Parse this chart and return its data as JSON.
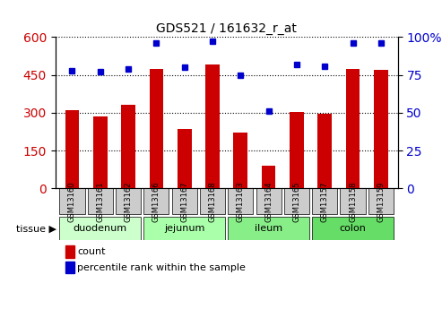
{
  "title": "GDS521 / 161632_r_at",
  "samples": [
    "GSM13160",
    "GSM13161",
    "GSM13162",
    "GSM13166",
    "GSM13167",
    "GSM13168",
    "GSM13163",
    "GSM13164",
    "GSM13165",
    "GSM13157",
    "GSM13158",
    "GSM13159"
  ],
  "counts": [
    310,
    285,
    330,
    475,
    235,
    490,
    220,
    90,
    305,
    295,
    475,
    470
  ],
  "percentiles": [
    78,
    77,
    79,
    96,
    80,
    97,
    75,
    51,
    82,
    81,
    96,
    96
  ],
  "tissues": [
    {
      "label": "duodenum",
      "start": 0,
      "end": 3,
      "color": "#ccffcc"
    },
    {
      "label": "jejunum",
      "start": 3,
      "end": 6,
      "color": "#aaffaa"
    },
    {
      "label": "ileum",
      "start": 6,
      "end": 9,
      "color": "#88ee88"
    },
    {
      "label": "colon",
      "start": 9,
      "end": 12,
      "color": "#66dd66"
    }
  ],
  "ylim_left": [
    0,
    600
  ],
  "ylim_right": [
    0,
    100
  ],
  "yticks_left": [
    0,
    150,
    300,
    450,
    600
  ],
  "yticks_right": [
    0,
    25,
    50,
    75,
    100
  ],
  "bar_color": "#cc0000",
  "dot_color": "#0000cc",
  "grid_color": "#000000",
  "bg_color": "#ffffff",
  "tick_label_gray": "#cccccc",
  "sample_box_color": "#cccccc",
  "tissue_label_fontsize": 9,
  "bar_width": 0.5,
  "legend_count_color": "#cc0000",
  "legend_pct_color": "#0000cc"
}
